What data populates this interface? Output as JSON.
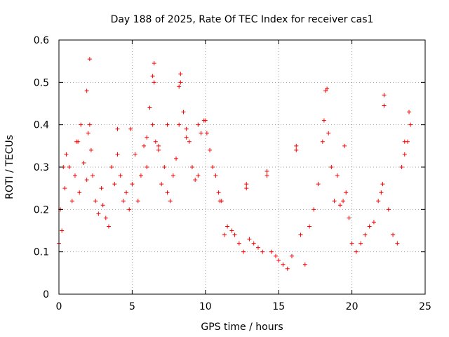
{
  "chart_data": {
    "type": "scatter",
    "title": "Day 188 of 2025, Rate Of TEC Index for receiver cas1",
    "xlabel": "GPS time / hours",
    "ylabel": "ROTI / TECUs",
    "xlim": [
      0,
      25
    ],
    "ylim": [
      0,
      0.6
    ],
    "x_ticks": [
      0,
      5,
      10,
      15,
      20,
      25
    ],
    "x_tick_labels": [
      "0",
      "5",
      "10",
      "15",
      "20",
      "25"
    ],
    "y_ticks": [
      0,
      0.1,
      0.2,
      0.3,
      0.4,
      0.5,
      0.6
    ],
    "y_tick_labels": [
      "0",
      "0.1",
      "0.2",
      "0.3",
      "0.4",
      "0.5",
      "0.6"
    ],
    "grid": true,
    "legend": "none",
    "marker": "plus",
    "color": "#ff0000",
    "series": [
      {
        "x": [
          0.0,
          0.1,
          0.2,
          0.4,
          0.5,
          0.7,
          0.9,
          1.1,
          1.2,
          1.4,
          1.5,
          1.7,
          1.9,
          2.0,
          2.1,
          2.2,
          2.3,
          2.5,
          2.7,
          2.9,
          3.0,
          3.2,
          3.4,
          3.6,
          3.8,
          4.0,
          4.2,
          4.4,
          4.6,
          4.8,
          5.0,
          5.2,
          5.4,
          5.6,
          5.8,
          6.0,
          6.2,
          6.4,
          6.5,
          6.6,
          6.8,
          7.0,
          7.2,
          7.4,
          7.6,
          7.8,
          8.0,
          8.2,
          8.3,
          8.5,
          8.7,
          8.9,
          9.1,
          9.3,
          9.5,
          9.7,
          9.9,
          10.1,
          10.3,
          10.5,
          10.7,
          10.9,
          11.1,
          11.3,
          11.5,
          11.8,
          12.0,
          12.3,
          12.6,
          12.8,
          13.0,
          13.3,
          13.6,
          13.9,
          14.2,
          14.5,
          14.8,
          15.0,
          15.3,
          15.6,
          15.9,
          16.2,
          16.5,
          16.8,
          17.1,
          17.4,
          17.7,
          18.0,
          18.2,
          18.4,
          18.6,
          18.8,
          19.0,
          19.2,
          19.4,
          19.6,
          19.8,
          20.0,
          20.3,
          20.6,
          20.9,
          21.2,
          21.5,
          21.8,
          22.0,
          22.2,
          22.5,
          22.8,
          23.1,
          23.4,
          23.6,
          23.8,
          24.0,
          2.1,
          6.5,
          6.4,
          8.3,
          8.2,
          1.9,
          18.3,
          22.2,
          23.9,
          0.3,
          1.3,
          4.0,
          4.9,
          6.0,
          6.8,
          7.4,
          8.7,
          9.5,
          10.0,
          11.0,
          12.8,
          14.2,
          16.2,
          18.1,
          19.5,
          22.1,
          23.6
        ],
        "y": [
          0.12,
          0.2,
          0.15,
          0.25,
          0.33,
          0.3,
          0.22,
          0.28,
          0.36,
          0.24,
          0.4,
          0.31,
          0.27,
          0.38,
          0.4,
          0.34,
          0.28,
          0.22,
          0.19,
          0.25,
          0.21,
          0.18,
          0.16,
          0.3,
          0.26,
          0.33,
          0.28,
          0.22,
          0.24,
          0.2,
          0.26,
          0.33,
          0.22,
          0.28,
          0.35,
          0.3,
          0.44,
          0.4,
          0.5,
          0.36,
          0.34,
          0.26,
          0.3,
          0.24,
          0.22,
          0.28,
          0.32,
          0.4,
          0.5,
          0.43,
          0.37,
          0.36,
          0.3,
          0.27,
          0.28,
          0.38,
          0.41,
          0.38,
          0.34,
          0.3,
          0.28,
          0.24,
          0.22,
          0.14,
          0.16,
          0.15,
          0.14,
          0.12,
          0.1,
          0.25,
          0.13,
          0.12,
          0.11,
          0.1,
          0.28,
          0.1,
          0.09,
          0.08,
          0.07,
          0.06,
          0.09,
          0.34,
          0.14,
          0.07,
          0.16,
          0.2,
          0.26,
          0.36,
          0.48,
          0.38,
          0.3,
          0.22,
          0.28,
          0.21,
          0.22,
          0.24,
          0.18,
          0.12,
          0.1,
          0.12,
          0.14,
          0.16,
          0.17,
          0.22,
          0.24,
          0.47,
          0.2,
          0.14,
          0.12,
          0.3,
          0.33,
          0.36,
          0.4,
          0.555,
          0.545,
          0.515,
          0.52,
          0.49,
          0.48,
          0.485,
          0.445,
          0.43,
          0.3,
          0.36,
          0.39,
          0.39,
          0.37,
          0.35,
          0.4,
          0.39,
          0.4,
          0.41,
          0.22,
          0.26,
          0.29,
          0.35,
          0.41,
          0.35,
          0.26,
          0.36
        ]
      }
    ]
  }
}
